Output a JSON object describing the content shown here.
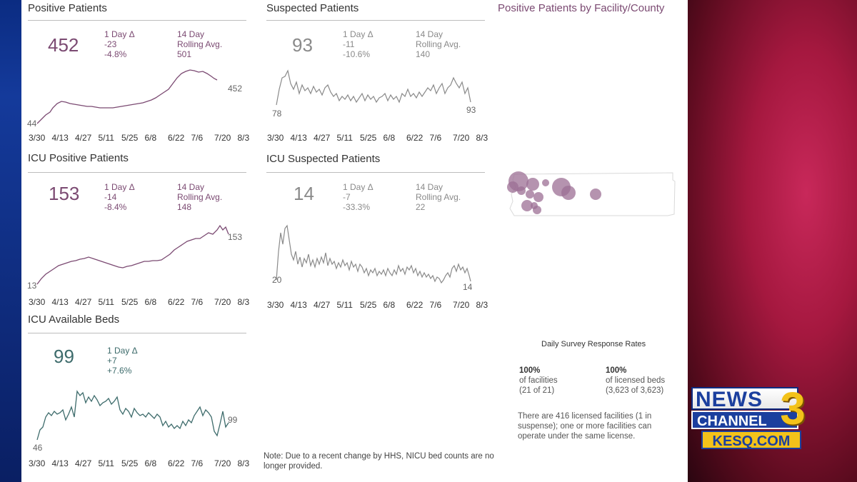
{
  "dates": [
    "3/30",
    "4/13",
    "4/27",
    "5/11",
    "5/25",
    "6/8",
    "6/22",
    "7/6",
    "7/20",
    "8/3"
  ],
  "positive": {
    "title": "Positive Patients",
    "value": "452",
    "delta_label": "1 Day Δ",
    "delta_abs": "-23",
    "delta_pct": "-4.8%",
    "rolling_label1": "14 Day",
    "rolling_label2": "Rolling Avg.",
    "rolling_value": "501",
    "start": "44",
    "end": "452"
  },
  "suspected": {
    "title": "Suspected Patients",
    "value": "93",
    "delta_label": "1 Day Δ",
    "delta_abs": "-11",
    "delta_pct": "-10.6%",
    "rolling_label1": "14 Day",
    "rolling_label2": "Rolling Avg.",
    "rolling_value": "140",
    "start": "78",
    "end": "93"
  },
  "icu_positive": {
    "title": "ICU Positive Patients",
    "value": "153",
    "delta_label": "1 Day Δ",
    "delta_abs": "-14",
    "delta_pct": "-8.4%",
    "rolling_label1": "14 Day",
    "rolling_label2": "Rolling Avg.",
    "rolling_value": "148",
    "start": "13",
    "end": "153"
  },
  "icu_suspected": {
    "title": "ICU Suspected Patients",
    "value": "14",
    "delta_label": "1 Day Δ",
    "delta_abs": "-7",
    "delta_pct": "-33.3%",
    "rolling_label1": "14 Day",
    "rolling_label2": "Rolling Avg.",
    "rolling_value": "22",
    "start": "20",
    "end": "14"
  },
  "icu_beds": {
    "title": "ICU Available Beds",
    "value": "99",
    "delta_label": "1 Day Δ",
    "delta_abs": "+7",
    "delta_pct": "+7.6%",
    "start": "46",
    "end": "99"
  },
  "map": {
    "title": "Positive Patients by Facility/County"
  },
  "survey": {
    "title": "Daily Survey Response Rates",
    "fac_pct": "100%",
    "fac_label": "of facilities",
    "fac_count": "(21 of 21)",
    "beds_pct": "100%",
    "beds_label": "of licensed beds",
    "beds_count": "(3,623 of 3,623)",
    "licensed_note": "There are 416 licensed facilities (1 in suspense); one or more facilities can operate under the same license."
  },
  "note": "Note: Due to a recent change by HHS, NICU bed counts are no longer provided.",
  "logo": {
    "news": "NEWS",
    "channel": "CHANNEL",
    "three": "3",
    "site": "KESQ.COM"
  },
  "colors": {
    "purple": "#7b4a72",
    "grey": "#8a8a8a",
    "teal": "#3d6b6b"
  }
}
